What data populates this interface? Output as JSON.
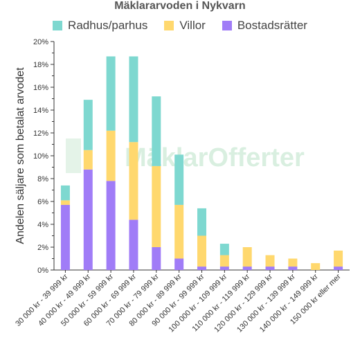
{
  "chart_data": {
    "type": "bar",
    "stacked": true,
    "title": "Mäklararvoden i Nykvarn",
    "ylabel": "Andelen säljare som betalat arvodet",
    "xlabel": "",
    "ylim": [
      0,
      20
    ],
    "yticks": [
      "0%",
      "2%",
      "4%",
      "6%",
      "8%",
      "10%",
      "12%",
      "14%",
      "16%",
      "18%",
      "20%"
    ],
    "legend_position": "top",
    "watermark": "MäklarOfferter",
    "categories": [
      "30 000 kr - 39 999 kr",
      "40 000 kr - 49 999 kr",
      "50 000 kr - 59 999 kr",
      "60 000 kr - 69 999 kr",
      "70 000 kr - 79 999 kr",
      "80 000 kr - 89 999 kr",
      "90 000 kr - 99 999 kr",
      "100 000 kr - 109 999 kr",
      "110 000 kr - 119 999 kr",
      "120 000 kr - 129 999 kr",
      "130 000 kr - 139 999 kr",
      "140 000 kr - 149 999 kr",
      "150 000 kr eller mer"
    ],
    "series": [
      {
        "name": "Bostadsrätter",
        "color": "#a07cf7",
        "values": [
          5.7,
          8.8,
          7.8,
          4.4,
          2.0,
          1.0,
          0.3,
          0.3,
          0.3,
          0.3,
          0.3,
          0.0,
          0.3
        ]
      },
      {
        "name": "Villor",
        "color": "#ffd86e",
        "values": [
          0.4,
          1.7,
          4.4,
          6.8,
          7.1,
          4.7,
          2.7,
          1.0,
          1.7,
          1.0,
          0.7,
          0.6,
          1.4
        ]
      },
      {
        "name": "Radhus/parhus",
        "color": "#7ed8d0",
        "values": [
          1.3,
          4.4,
          6.5,
          7.5,
          6.1,
          4.4,
          2.4,
          1.0,
          0.0,
          0.0,
          0.0,
          0.0,
          0.0
        ]
      }
    ],
    "legend_order": [
      "Radhus/parhus",
      "Villor",
      "Bostadsrätter"
    ]
  }
}
